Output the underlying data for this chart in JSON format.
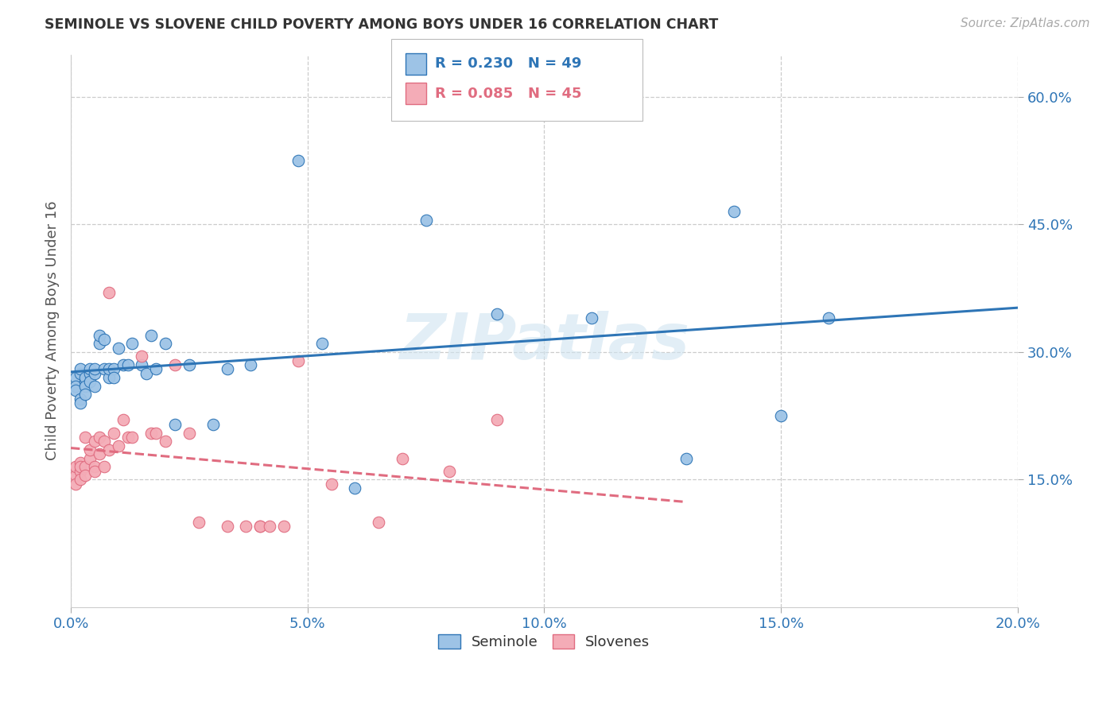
{
  "title": "SEMINOLE VS SLOVENE CHILD POVERTY AMONG BOYS UNDER 16 CORRELATION CHART",
  "source": "Source: ZipAtlas.com",
  "ylabel": "Child Poverty Among Boys Under 16",
  "seminole_R": 0.23,
  "seminole_N": 49,
  "slovene_R": 0.085,
  "slovene_N": 45,
  "seminole_color": "#9dc3e6",
  "slovene_color": "#f4acb7",
  "seminole_line_color": "#2e75b6",
  "slovene_line_color": "#e06c80",
  "background_color": "#ffffff",
  "xlim": [
    0,
    0.2
  ],
  "ylim": [
    0,
    0.65
  ],
  "xticks": [
    0.0,
    0.05,
    0.1,
    0.15,
    0.2
  ],
  "xticklabels": [
    "0.0%",
    "5.0%",
    "10.0%",
    "15.0%",
    "20.0%"
  ],
  "yticks": [
    0.15,
    0.3,
    0.45,
    0.6
  ],
  "yticklabels": [
    "15.0%",
    "30.0%",
    "45.0%",
    "60.0%"
  ],
  "seminole_x": [
    0.001,
    0.001,
    0.001,
    0.002,
    0.002,
    0.002,
    0.002,
    0.003,
    0.003,
    0.003,
    0.003,
    0.004,
    0.004,
    0.004,
    0.005,
    0.005,
    0.005,
    0.006,
    0.006,
    0.007,
    0.007,
    0.008,
    0.008,
    0.009,
    0.009,
    0.01,
    0.011,
    0.012,
    0.013,
    0.015,
    0.016,
    0.017,
    0.018,
    0.02,
    0.022,
    0.025,
    0.03,
    0.033,
    0.038,
    0.048,
    0.053,
    0.06,
    0.075,
    0.09,
    0.11,
    0.13,
    0.14,
    0.15,
    0.16
  ],
  "seminole_y": [
    0.27,
    0.26,
    0.255,
    0.245,
    0.275,
    0.28,
    0.24,
    0.265,
    0.27,
    0.26,
    0.25,
    0.275,
    0.265,
    0.28,
    0.26,
    0.275,
    0.28,
    0.31,
    0.32,
    0.28,
    0.315,
    0.27,
    0.28,
    0.28,
    0.27,
    0.305,
    0.285,
    0.285,
    0.31,
    0.285,
    0.275,
    0.32,
    0.28,
    0.31,
    0.215,
    0.285,
    0.215,
    0.28,
    0.285,
    0.525,
    0.31,
    0.14,
    0.455,
    0.345,
    0.34,
    0.175,
    0.465,
    0.225,
    0.34
  ],
  "slovene_x": [
    0.001,
    0.001,
    0.001,
    0.002,
    0.002,
    0.002,
    0.002,
    0.003,
    0.003,
    0.003,
    0.004,
    0.004,
    0.005,
    0.005,
    0.005,
    0.006,
    0.006,
    0.007,
    0.007,
    0.008,
    0.008,
    0.009,
    0.01,
    0.011,
    0.012,
    0.013,
    0.015,
    0.017,
    0.018,
    0.02,
    0.022,
    0.025,
    0.027,
    0.033,
    0.037,
    0.04,
    0.04,
    0.042,
    0.045,
    0.048,
    0.055,
    0.065,
    0.07,
    0.08,
    0.09
  ],
  "slovene_y": [
    0.155,
    0.165,
    0.145,
    0.17,
    0.16,
    0.15,
    0.165,
    0.165,
    0.155,
    0.2,
    0.175,
    0.185,
    0.165,
    0.16,
    0.195,
    0.18,
    0.2,
    0.165,
    0.195,
    0.185,
    0.37,
    0.205,
    0.19,
    0.22,
    0.2,
    0.2,
    0.295,
    0.205,
    0.205,
    0.195,
    0.285,
    0.205,
    0.1,
    0.095,
    0.095,
    0.095,
    0.095,
    0.095,
    0.095,
    0.29,
    0.145,
    0.1,
    0.175,
    0.16,
    0.22
  ]
}
